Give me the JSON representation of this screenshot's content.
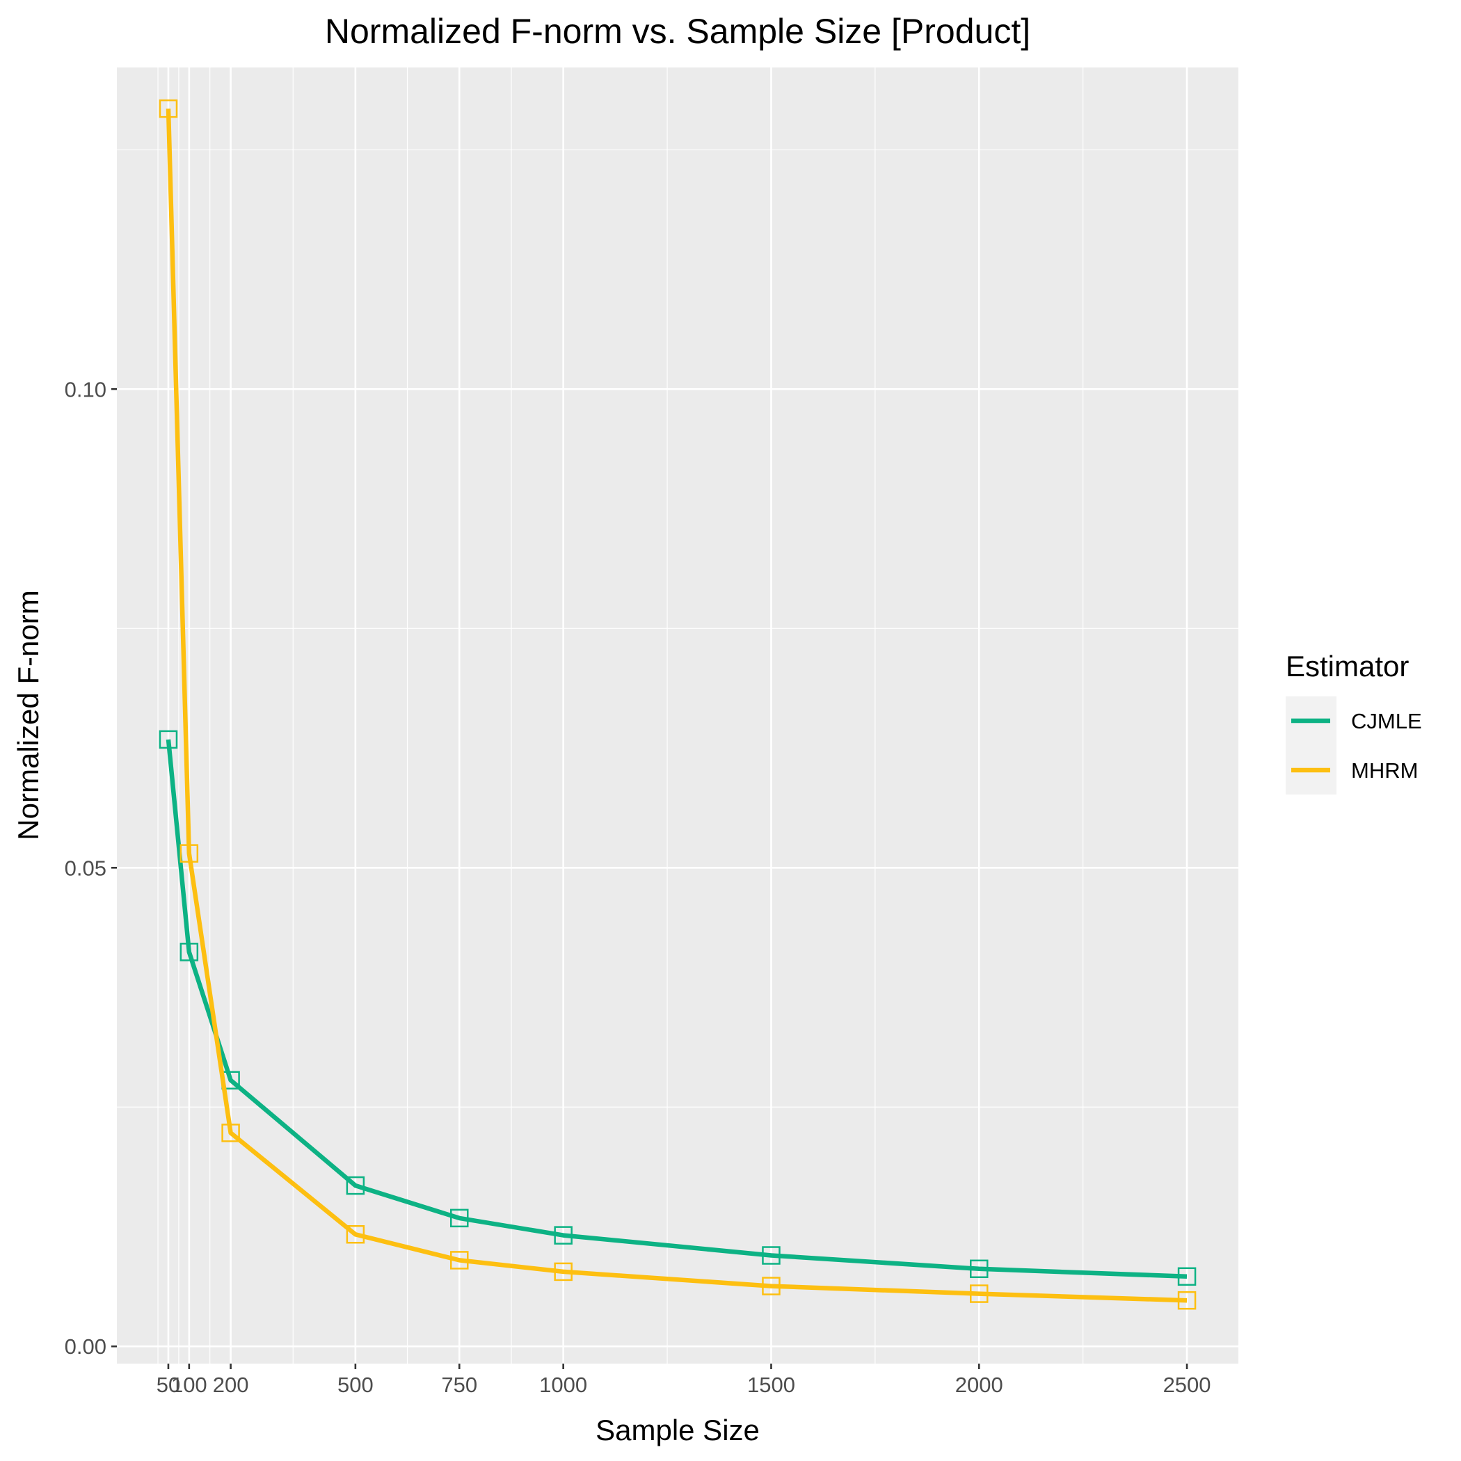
{
  "chart_data": {
    "type": "line",
    "title": "Normalized F-norm vs. Sample Size [Product]",
    "xlabel": "Sample Size",
    "ylabel": "Normalized F-norm",
    "x": [
      50,
      100,
      200,
      500,
      750,
      1000,
      1500,
      2000,
      2500
    ],
    "x_tick_labels": [
      "50",
      "100",
      "200",
      "500",
      "750",
      "1000",
      "1500",
      "2000",
      "2500"
    ],
    "y_ticks": [
      0.0,
      0.05,
      0.1
    ],
    "y_tick_labels": [
      "0.00",
      "0.05",
      "0.10"
    ],
    "xlim": [
      -73.75,
      2623.75
    ],
    "ylim": [
      -0.0018,
      0.1336
    ],
    "grid": true,
    "legend": {
      "title": "Estimator",
      "placement": "right"
    },
    "series": [
      {
        "name": "CJMLE",
        "color": "#0db284",
        "values": [
          0.0634,
          0.0412,
          0.0278,
          0.0168,
          0.0134,
          0.0116,
          0.0095,
          0.0081,
          0.0073
        ]
      },
      {
        "name": "MHRM",
        "color": "#fdbf11",
        "values": [
          0.1293,
          0.0515,
          0.0223,
          0.0117,
          0.009,
          0.0078,
          0.0063,
          0.0055,
          0.0048
        ]
      }
    ]
  }
}
